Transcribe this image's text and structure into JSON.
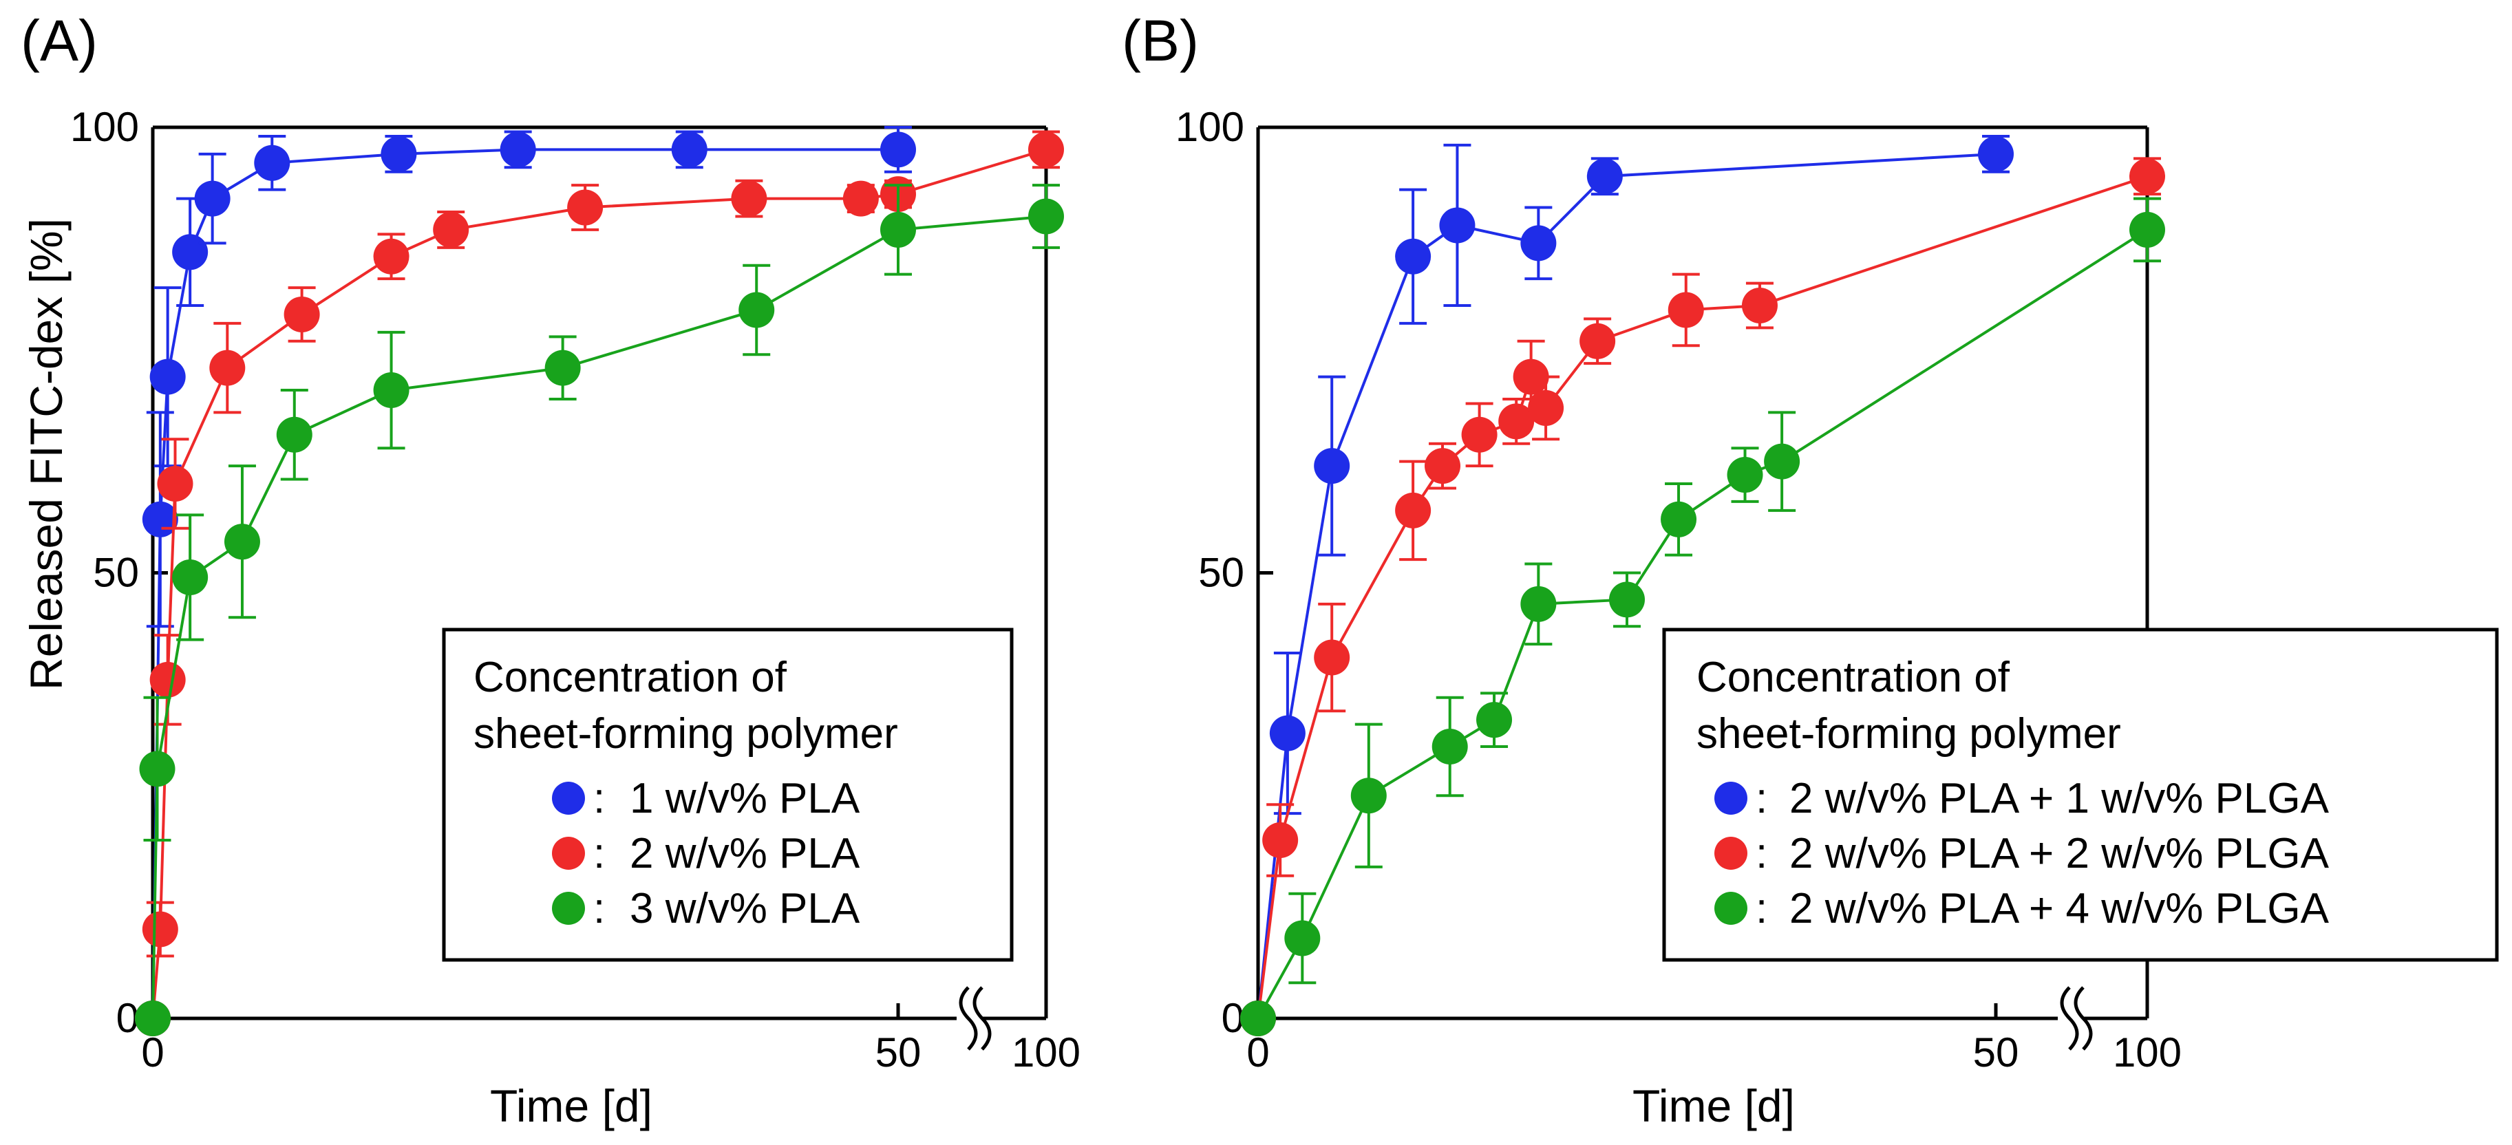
{
  "colors": {
    "blue": "#1f2de8",
    "red": "#ee2a2a",
    "green": "#18a31c",
    "axis": "#000000"
  },
  "chart_data": [
    {
      "type": "line",
      "panel_label": "(A)",
      "xlabel": "Time [d]",
      "ylabel": "Released FITC-dex [%]",
      "xticks": [
        "0",
        "50",
        "100"
      ],
      "yticks": [
        "0",
        "50",
        "100"
      ],
      "ylim": [
        0,
        100
      ],
      "axis_break": "between 50 and 100 d",
      "legend_title": [
        "Concentration of",
        "sheet-forming polymer"
      ],
      "legend_position": "bottom-right",
      "series": [
        {
          "name": "1 w/v% PLA",
          "legend_label": "1 w/v% PLA",
          "color": "blue",
          "points": [
            [
              0,
              0,
              0
            ],
            [
              0.5,
              56,
              12
            ],
            [
              1,
              72,
              10
            ],
            [
              2.5,
              86,
              6
            ],
            [
              4,
              92,
              5
            ],
            [
              8,
              96,
              3
            ],
            [
              16.5,
              97,
              2
            ],
            [
              24.5,
              97.5,
              2
            ],
            [
              36,
              97.5,
              2
            ],
            [
              50,
              97.5,
              2.5
            ],
            [
              100,
              null,
              null
            ]
          ]
        },
        {
          "name": "2 w/v% PLA",
          "legend_label": "2 w/v% PLA",
          "color": "red",
          "points": [
            [
              0,
              0,
              0
            ],
            [
              0.5,
              10,
              3
            ],
            [
              1,
              38,
              5
            ],
            [
              1.5,
              60,
              5
            ],
            [
              5,
              73,
              5
            ],
            [
              10,
              79,
              3
            ],
            [
              16,
              85.5,
              2.5
            ],
            [
              20,
              88.5,
              2
            ],
            [
              29,
              91,
              2.5
            ],
            [
              40,
              92,
              2
            ],
            [
              47.5,
              92,
              1.5
            ],
            [
              50,
              92.5,
              1.5
            ],
            [
              100,
              97.5,
              2
            ]
          ]
        },
        {
          "name": "3 w/v% PLA",
          "legend_label": "3 w/v% PLA",
          "color": "green",
          "points": [
            [
              0,
              0,
              0
            ],
            [
              0.3,
              28,
              8
            ],
            [
              2.5,
              49.5,
              7
            ],
            [
              6,
              53.5,
              8.5
            ],
            [
              9.5,
              65.5,
              5
            ],
            [
              16,
              70.5,
              6.5
            ],
            [
              27.5,
              73,
              3.5
            ],
            [
              40.5,
              79.5,
              5
            ],
            [
              50,
              88.5,
              5
            ],
            [
              100,
              90,
              3.5
            ]
          ]
        }
      ]
    },
    {
      "type": "line",
      "panel_label": "(B)",
      "xlabel": "Time [d]",
      "ylabel": "",
      "xticks": [
        "0",
        "50",
        "100"
      ],
      "yticks": [
        "0",
        "50",
        "100"
      ],
      "ylim": [
        0,
        100
      ],
      "axis_break": "between 50 and 100 d",
      "legend_title": [
        "Concentration of",
        "sheet-forming polymer"
      ],
      "legend_position": "bottom-right",
      "series": [
        {
          "name": "2 w/v% PLA + 1 w/v% PLGA",
          "legend_label": "2 w/v% PLA + 1 w/v% PLGA",
          "color": "blue",
          "points": [
            [
              0,
              0,
              0
            ],
            [
              2,
              32,
              9
            ],
            [
              5,
              62,
              10
            ],
            [
              10.5,
              85.5,
              7.5
            ],
            [
              13.5,
              89,
              9
            ],
            [
              19,
              87,
              4
            ],
            [
              23.5,
              94.5,
              2
            ],
            [
              50,
              97,
              2
            ]
          ]
        },
        {
          "name": "2 w/v% PLA + 2 w/v% PLGA",
          "legend_label": "2 w/v% PLA + 2 w/v% PLGA",
          "color": "red",
          "points": [
            [
              0,
              0,
              0
            ],
            [
              1.5,
              20,
              4
            ],
            [
              5,
              40.5,
              6
            ],
            [
              10.5,
              57,
              5.5
            ],
            [
              12.5,
              62,
              2.5
            ],
            [
              15,
              65.5,
              3.5
            ],
            [
              17.5,
              67,
              2.5
            ],
            [
              18.5,
              72,
              4
            ],
            [
              19.5,
              68.5,
              3.5
            ],
            [
              23,
              76,
              2.5
            ],
            [
              29,
              79.5,
              4
            ],
            [
              34,
              80,
              2.5
            ],
            [
              100,
              94.5,
              2
            ]
          ]
        },
        {
          "name": "2 w/v% PLA + 4 w/v% PLGA",
          "legend_label": "2 w/v% PLA + 4 w/v% PLGA",
          "color": "green",
          "points": [
            [
              0,
              0,
              0
            ],
            [
              3,
              9,
              5
            ],
            [
              7.5,
              25,
              8
            ],
            [
              13,
              30.5,
              5.5
            ],
            [
              16,
              33.5,
              3
            ],
            [
              19,
              46.5,
              4.5
            ],
            [
              25,
              47,
              3
            ],
            [
              28.5,
              56,
              4
            ],
            [
              33,
              61,
              3
            ],
            [
              35.5,
              62.5,
              5.5
            ],
            [
              100,
              88.5,
              3.5
            ]
          ]
        }
      ]
    }
  ]
}
